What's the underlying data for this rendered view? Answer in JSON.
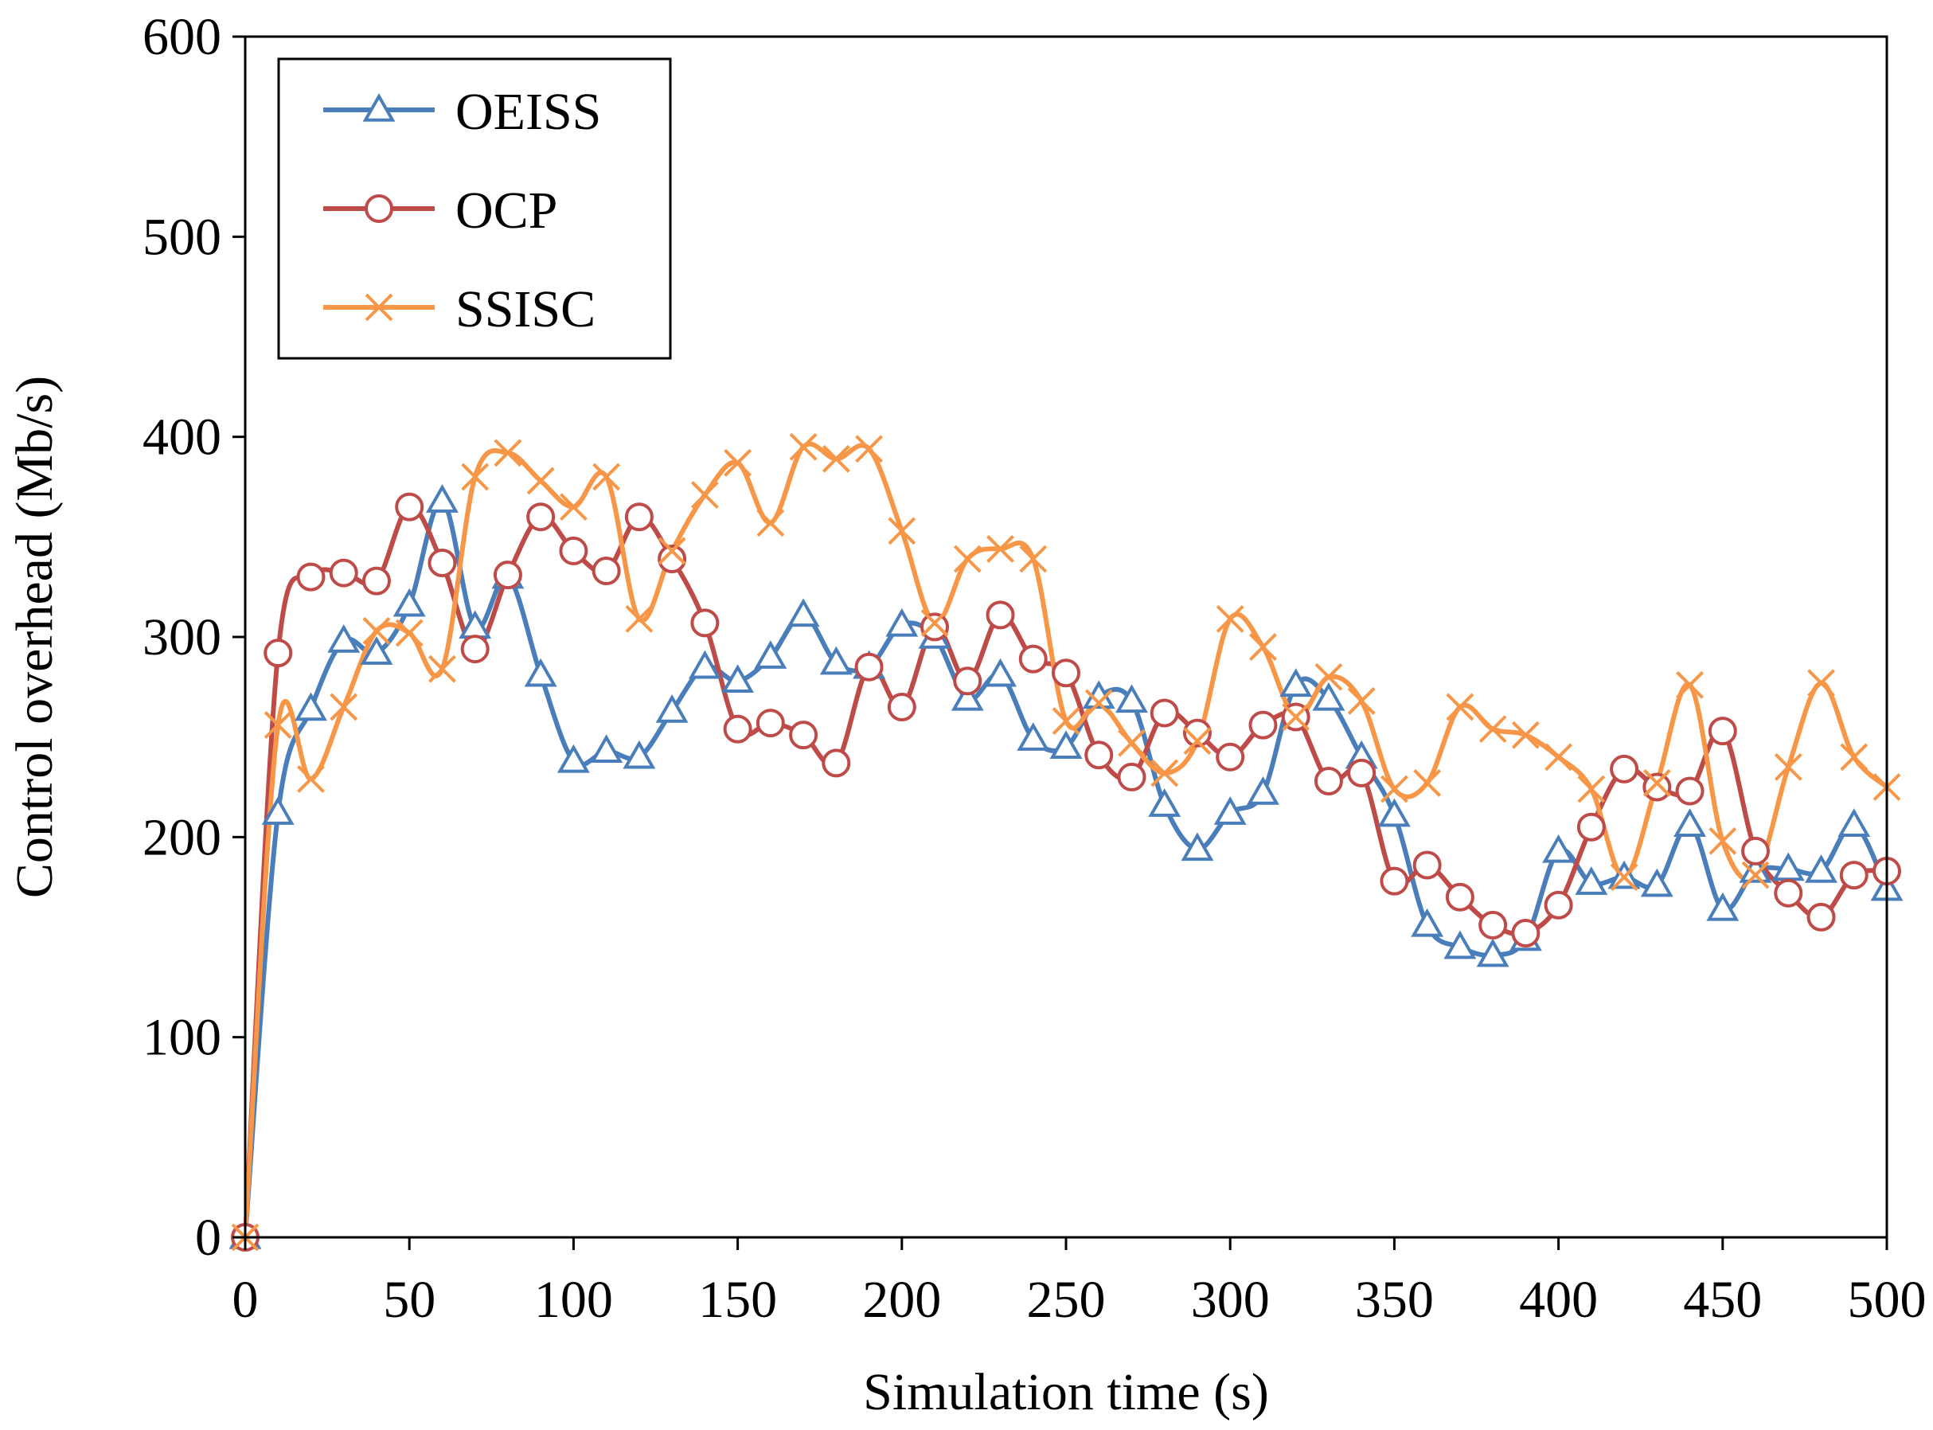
{
  "chart_data": {
    "type": "line",
    "title": "",
    "xlabel": "Simulation time (s)",
    "ylabel": "Control overhead (Mb/s)",
    "xlim": [
      0,
      500
    ],
    "ylim": [
      0,
      600
    ],
    "xticks": [
      0,
      50,
      100,
      150,
      200,
      250,
      300,
      350,
      400,
      450,
      500
    ],
    "yticks": [
      0,
      100,
      200,
      300,
      400,
      500,
      600
    ],
    "grid": false,
    "legend_position": "top-left",
    "x": [
      0,
      10,
      20,
      30,
      40,
      50,
      60,
      70,
      80,
      90,
      100,
      110,
      120,
      130,
      140,
      150,
      160,
      170,
      180,
      190,
      200,
      210,
      220,
      230,
      240,
      250,
      260,
      270,
      280,
      290,
      300,
      310,
      320,
      330,
      340,
      350,
      360,
      370,
      380,
      390,
      400,
      410,
      420,
      430,
      440,
      450,
      460,
      470,
      480,
      490,
      500
    ],
    "series": [
      {
        "name": "OEISS",
        "color": "#4a7ebb",
        "marker": "triangle",
        "values": [
          0,
          212,
          264,
          298,
          292,
          316,
          368,
          305,
          330,
          281,
          238,
          243,
          240,
          263,
          285,
          278,
          290,
          311,
          287,
          285,
          306,
          300,
          269,
          281,
          249,
          245,
          270,
          268,
          216,
          194,
          212,
          222,
          276,
          269,
          240,
          211,
          156,
          145,
          141,
          149,
          193,
          177,
          180,
          176,
          206,
          164,
          183,
          184,
          183,
          206,
          174
        ]
      },
      {
        "name": "OCP",
        "color": "#be4b48",
        "marker": "circle",
        "values": [
          0,
          292,
          330,
          332,
          328,
          365,
          337,
          294,
          331,
          360,
          343,
          333,
          360,
          339,
          307,
          254,
          257,
          251,
          237,
          285,
          265,
          305,
          278,
          311,
          289,
          282,
          241,
          230,
          262,
          252,
          240,
          256,
          260,
          228,
          232,
          178,
          186,
          170,
          156,
          152,
          166,
          205,
          234,
          225,
          223,
          253,
          193,
          172,
          160,
          181,
          183
        ]
      },
      {
        "name": "SSISC",
        "color": "#f79646",
        "marker": "x",
        "values": [
          0,
          256,
          229,
          265,
          303,
          302,
          284,
          380,
          392,
          378,
          365,
          380,
          309,
          343,
          371,
          387,
          357,
          395,
          389,
          394,
          353,
          307,
          339,
          344,
          339,
          258,
          267,
          247,
          232,
          248,
          309,
          295,
          260,
          280,
          268,
          224,
          227,
          265,
          254,
          251,
          240,
          224,
          180,
          227,
          276,
          198,
          181,
          235,
          277,
          240,
          225
        ]
      }
    ]
  }
}
